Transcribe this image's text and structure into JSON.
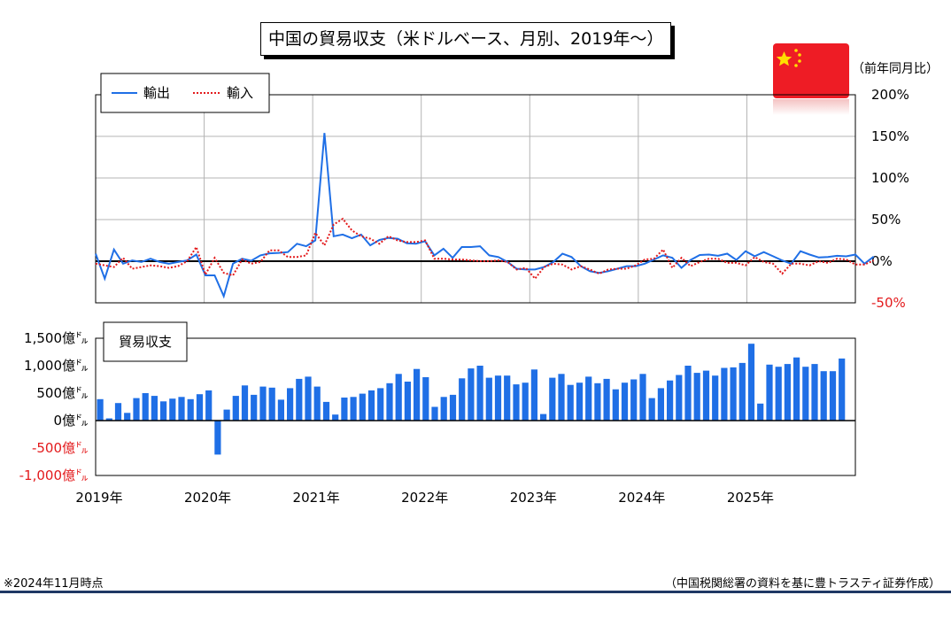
{
  "title": "中国の貿易収支（米ドルベース、月別、2019年～）",
  "unit_label": "（前年同月比）",
  "footnote": "※2024年11月時点",
  "source": "（中国税関総署の資料を基に豊トラスティ証券作成）",
  "flag": {
    "color": "#ee1c25",
    "star_color": "#ffde00",
    "icon": "china-flag-icon"
  },
  "colors": {
    "exports": "#1f6fe6",
    "imports": "#e31a1c",
    "bars": "#1f6fe6",
    "negative_tick": "#e31a1c"
  },
  "chart_data": [
    {
      "type": "line",
      "legend": [
        "輸出",
        "輸入"
      ],
      "legend_position": "top-left",
      "y_axis_side": "right",
      "ylim": [
        -50,
        200
      ],
      "yticks": [
        "200%",
        "150%",
        "100%",
        "50%",
        "0%",
        "-50%"
      ],
      "grid": true,
      "x_start": "2019-01",
      "series": [
        {
          "name": "輸出",
          "style": "solid",
          "values": [
            9,
            -21,
            14,
            -3,
            1,
            -1,
            3,
            -1,
            -3,
            -1,
            1,
            8,
            -17,
            -17,
            -42,
            -3,
            3,
            0.5,
            7,
            9.5,
            10,
            11,
            21,
            18,
            25,
            154,
            30,
            32,
            27.5,
            32,
            19,
            25.5,
            28,
            27,
            21.5,
            21,
            24,
            7,
            15,
            4,
            17,
            17,
            18,
            7,
            5,
            -1,
            -9,
            -10,
            -10,
            -7,
            -1,
            9,
            5,
            -6,
            -12,
            -14,
            -12,
            -9,
            -6,
            -6,
            -3,
            2,
            7,
            4,
            -8,
            1.5,
            7.5,
            8,
            6.5,
            9,
            1.5,
            12,
            6,
            11,
            6,
            1,
            -3,
            12,
            8,
            4.5,
            5,
            6.5,
            5.8,
            8,
            -3,
            5.5
          ]
        },
        {
          "name": "輸入",
          "style": "dotted",
          "values": [
            -3,
            -5,
            -7,
            4,
            -9,
            -7,
            -5,
            -6,
            -8,
            -6,
            0,
            17,
            -16,
            4,
            -14,
            -17,
            2,
            -3,
            -1,
            13,
            13,
            5,
            5,
            7,
            34,
            19,
            44,
            51,
            37,
            30,
            27,
            21,
            30,
            25,
            23,
            23,
            25,
            3,
            3,
            2,
            2,
            1,
            0,
            0,
            1,
            -1,
            -10,
            -8,
            -21,
            -7,
            -3,
            -4,
            -10,
            -6,
            -10,
            -15,
            -10,
            -9,
            -9,
            -5,
            2,
            3,
            14,
            -8,
            4,
            -6,
            -1,
            3,
            3,
            -2,
            -2,
            -5,
            5,
            -1,
            -3,
            -15,
            -3,
            -3,
            -5,
            0,
            -2,
            3,
            2,
            -4,
            -4,
            1
          ]
        }
      ]
    },
    {
      "type": "bar",
      "legend": [
        "貿易収支"
      ],
      "legend_position": "top-left",
      "y_axis_side": "left",
      "ylim": [
        -1000,
        1500
      ],
      "yticks": [
        "1,500億㌦",
        "1,000億㌦",
        "500億㌦",
        "0億㌦",
        "-500億㌦",
        "-1,000億㌦"
      ],
      "grid": false,
      "x_start": "2019-01",
      "x_tick_labels": [
        "2019年",
        "2020年",
        "2021年",
        "2022年",
        "2023年",
        "2024年",
        "2025年"
      ],
      "values": [
        390,
        40,
        320,
        140,
        410,
        500,
        450,
        350,
        400,
        430,
        390,
        480,
        550,
        -620,
        200,
        450,
        640,
        470,
        620,
        600,
        380,
        590,
        760,
        800,
        620,
        340,
        110,
        420,
        430,
        490,
        550,
        590,
        680,
        850,
        710,
        940,
        790,
        250,
        430,
        470,
        770,
        950,
        1000,
        780,
        820,
        820,
        660,
        690,
        930,
        120,
        780,
        850,
        650,
        690,
        800,
        680,
        760,
        570,
        690,
        750,
        850,
        410,
        590,
        730,
        830,
        1000,
        870,
        910,
        820,
        960,
        970,
        1050,
        1400,
        310,
        1020,
        980,
        1030,
        1150,
        980,
        1030,
        900,
        900,
        1130
      ]
    }
  ]
}
